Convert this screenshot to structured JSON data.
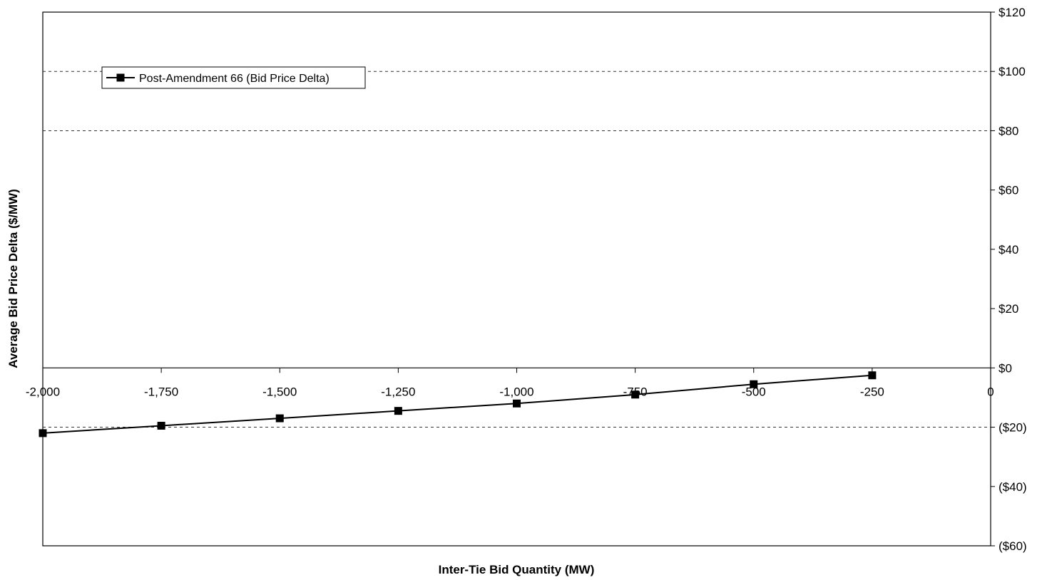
{
  "chart_data": {
    "type": "line",
    "xlabel": "Inter-Tie Bid Quantity (MW)",
    "ylabel": "Average Bid Price Delta ($/MW)",
    "xlim": [
      -2000,
      0
    ],
    "ylim": [
      -60,
      120
    ],
    "x_tick_values": [
      -2000,
      -1750,
      -1500,
      -1250,
      -1000,
      -750,
      -500,
      -250,
      0
    ],
    "x_tick_labels": [
      "-2,000",
      "-1,750",
      "-1,500",
      "-1,250",
      "-1,000",
      "-750",
      "-500",
      "-250",
      "0"
    ],
    "y_tick_values": [
      120,
      100,
      80,
      60,
      40,
      20,
      0,
      -20,
      -40,
      -60
    ],
    "y_tick_labels": [
      "$120",
      "$100",
      "$80",
      "$60",
      "$40",
      "$20",
      "$0",
      "($20)",
      "($40)",
      "($60)"
    ],
    "y_axis_position": "right",
    "gridlines_dashed_at": [
      100,
      80,
      -20
    ],
    "grid": true,
    "legend_position": "top-left",
    "series": [
      {
        "name": "Post-Amendment 66 (Bid Price Delta)",
        "color": "#000000",
        "marker": "square",
        "x": [
          -2000,
          -1750,
          -1500,
          -1250,
          -1000,
          -750,
          -500,
          -250
        ],
        "y": [
          -22,
          -19.5,
          -17,
          -14.5,
          -12,
          -9,
          -5.5,
          -2.5
        ]
      }
    ]
  }
}
